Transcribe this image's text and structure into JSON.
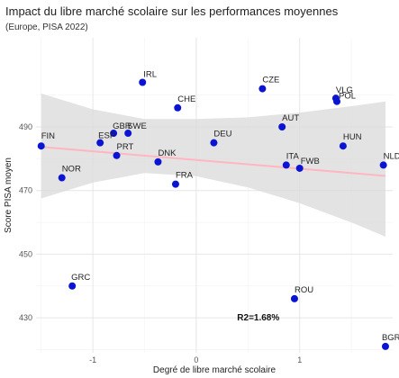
{
  "chart_data": {
    "type": "scatter",
    "title": "Impact du libre marché scolaire sur les performances moyennes",
    "subtitle": "(Europe, PISA 2022)",
    "xlabel": "Degré de libre marché scolaire",
    "ylabel": "Score PISA moyen",
    "xlim": [
      -1.55,
      1.9
    ],
    "ylim": [
      419,
      518
    ],
    "x_ticks": [
      -1,
      0,
      1
    ],
    "y_ticks": [
      430,
      450,
      470,
      490
    ],
    "grid": true,
    "points": [
      {
        "label": "IRL",
        "x": -0.52,
        "y": 504
      },
      {
        "label": "CZE",
        "x": 0.64,
        "y": 502
      },
      {
        "label": "VLG",
        "x": 1.35,
        "y": 499
      },
      {
        "label": "POL",
        "x": 1.36,
        "y": 498
      },
      {
        "label": "CHE",
        "x": -0.18,
        "y": 496
      },
      {
        "label": "AUT",
        "x": 0.83,
        "y": 490
      },
      {
        "label": "GBR",
        "x": -0.8,
        "y": 488
      },
      {
        "label": "SWE",
        "x": -0.66,
        "y": 488
      },
      {
        "label": "ESP",
        "x": -0.93,
        "y": 485
      },
      {
        "label": "DEU",
        "x": 0.17,
        "y": 485
      },
      {
        "label": "HUN",
        "x": 1.42,
        "y": 484
      },
      {
        "label": "FIN",
        "x": -1.5,
        "y": 484
      },
      {
        "label": "PRT",
        "x": -0.77,
        "y": 481
      },
      {
        "label": "DNK",
        "x": -0.37,
        "y": 479
      },
      {
        "label": "ITA",
        "x": 0.87,
        "y": 478
      },
      {
        "label": "NLD",
        "x": 1.81,
        "y": 478
      },
      {
        "label": "FWB",
        "x": 1.0,
        "y": 477
      },
      {
        "label": "NOR",
        "x": -1.3,
        "y": 474
      },
      {
        "label": "FRA",
        "x": -0.2,
        "y": 472
      },
      {
        "label": "GRC",
        "x": -1.2,
        "y": 440
      },
      {
        "label": "ROU",
        "x": 0.95,
        "y": 436
      },
      {
        "label": "BGR",
        "x": 1.83,
        "y": 421
      }
    ],
    "trend": {
      "x": [
        -1.5,
        1.83
      ],
      "y": [
        483.7,
        474.6
      ],
      "color": "#ffb6c1"
    },
    "confidence_band": {
      "x": [
        -1.5,
        -1.0,
        -0.5,
        0.0,
        0.5,
        1.0,
        1.5,
        1.83
      ],
      "lower": [
        467.5,
        472.5,
        475.5,
        474.5,
        471.0,
        466.0,
        460.0,
        455.5
      ],
      "upper": [
        500.5,
        495.5,
        492.5,
        492.5,
        493.0,
        494.5,
        496.5,
        498.0
      ],
      "color": "#d9d9d9"
    },
    "annotation": {
      "text": "R2=1.68%",
      "x": 0.6,
      "y": 430
    },
    "point_color": "#0a14d2"
  }
}
